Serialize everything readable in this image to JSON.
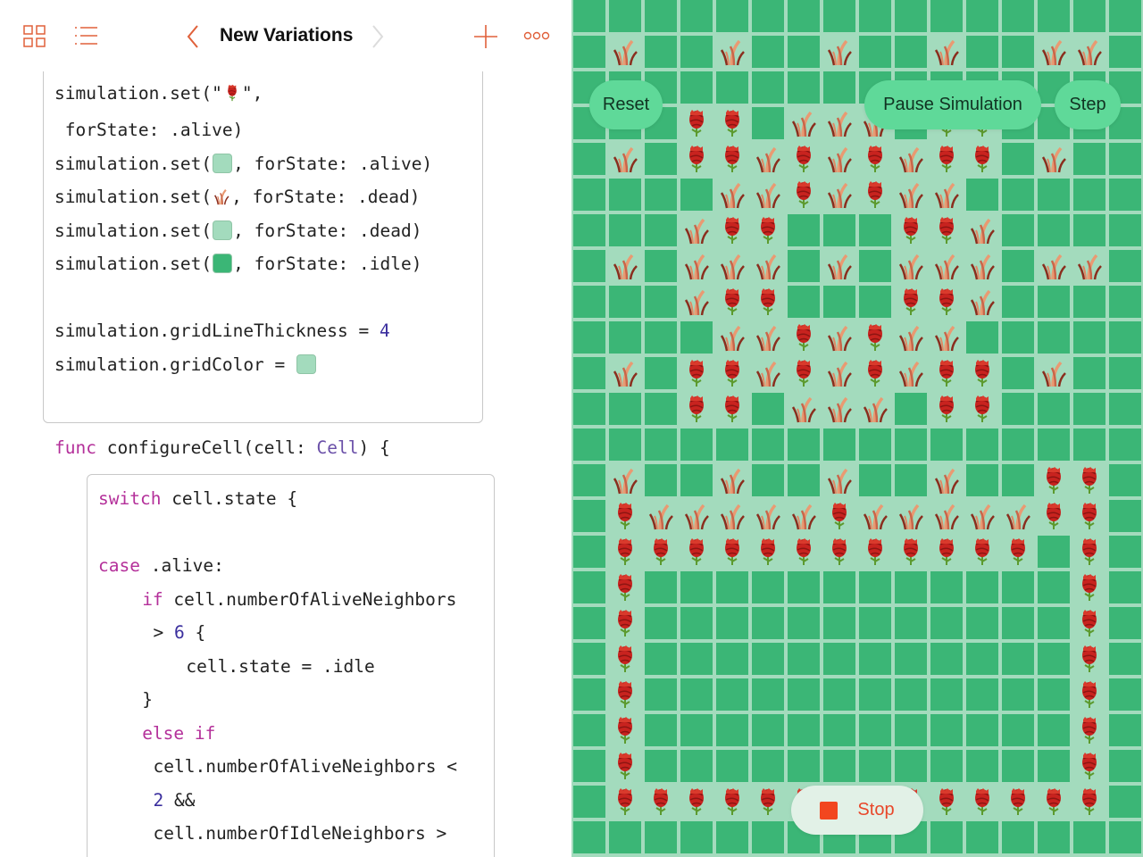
{
  "toolbar": {
    "title": "New Variations",
    "icons": [
      "grid-icon",
      "list-icon",
      "chevron-left-icon",
      "chevron-right-icon",
      "plus-icon",
      "more-icon"
    ],
    "accent": "#e0603a"
  },
  "code_box1": [
    [
      [
        "simulation.set(\"",
        ""
      ],
      [
        "@rose",
        ""
      ],
      [
        "\",",
        ""
      ]
    ],
    [
      [
        " forState: .alive)",
        ""
      ]
    ],
    [
      [
        "simulation.set(",
        ""
      ],
      [
        "@light",
        ""
      ],
      [
        ", forState: .alive)",
        ""
      ]
    ],
    [
      [
        "simulation.set(",
        ""
      ],
      [
        "@grass",
        ""
      ],
      [
        ", forState: .dead)",
        ""
      ]
    ],
    [
      [
        "simulation.set(",
        ""
      ],
      [
        "@light",
        ""
      ],
      [
        ", forState: .dead)",
        ""
      ]
    ],
    [
      [
        "simulation.set(",
        ""
      ],
      [
        "@dark",
        ""
      ],
      [
        ", forState: .idle)",
        ""
      ]
    ],
    [],
    [
      [
        "simulation.gridLineThickness = ",
        ""
      ],
      [
        "4",
        "num"
      ]
    ],
    [
      [
        "simulation.gridColor = ",
        ""
      ],
      [
        "@light",
        ""
      ]
    ]
  ],
  "func_line": [
    [
      "func",
      "kw"
    ],
    [
      " configureCell(cell: ",
      ""
    ],
    [
      "Cell",
      "ty"
    ],
    [
      ") {",
      ""
    ]
  ],
  "code_box2": [
    {
      "indent": 0,
      "tokens": [
        [
          "switch",
          "kw"
        ],
        [
          " cell.state {",
          ""
        ]
      ]
    },
    {
      "indent": 0,
      "tokens": []
    },
    {
      "indent": 0,
      "tokens": [
        [
          "case",
          "kw"
        ],
        [
          " .alive:",
          ""
        ]
      ]
    },
    {
      "indent": 4,
      "tokens": [
        [
          "if",
          "kw"
        ],
        [
          " cell.numberOfAliveNeighbors",
          ""
        ]
      ]
    },
    {
      "indent": 5,
      "tokens": [
        [
          "> ",
          ""
        ],
        [
          "6",
          "num"
        ],
        [
          " {",
          ""
        ]
      ]
    },
    {
      "indent": 8,
      "tokens": [
        [
          "cell.state = .idle",
          ""
        ]
      ]
    },
    {
      "indent": 4,
      "tokens": [
        [
          "}",
          ""
        ]
      ]
    },
    {
      "indent": 4,
      "tokens": [
        [
          "else if",
          "kw"
        ]
      ]
    },
    {
      "indent": 5,
      "tokens": [
        [
          "cell.numberOfAliveNeighbors <",
          ""
        ]
      ]
    },
    {
      "indent": 5,
      "tokens": [
        [
          "2",
          "num"
        ],
        [
          " &&",
          ""
        ]
      ]
    },
    {
      "indent": 5,
      "tokens": [
        [
          "cell.numberOfIdleNeighbors >",
          ""
        ]
      ]
    }
  ],
  "colors": {
    "idle": "#3bb676",
    "grid": "#a3dbbd",
    "alive_bg": "#a3dbbd",
    "dead_bg": "#a3dbbd"
  },
  "simulation": {
    "legend": {
      "R": "alive (rose)",
      "G": "dead (grass)",
      ".": "idle"
    },
    "rows": [
      "................",
      ".G..G..G..G..GG.",
      "................",
      "...RR.GGG.RR....",
      ".G.RRGRGRGRR.G..",
      "....GGRGRGG.....",
      "...GRR...RRG....",
      ".G.GGG.G.GGG.GG.",
      "...GRR...RRG....",
      "....GGRGRGG.....",
      ".G.RRGRGRGRR.G..",
      "...RR.GGG.RR....",
      "................",
      ".G..G..G..G..RR.",
      ".RGGGGGRGGGGGRR.",
      ".RRRRRRRRRRRR.R.",
      ".R............R.",
      ".R............R.",
      ".R............R.",
      ".R............R.",
      ".R............R.",
      ".R............R.",
      ".RRRRRRRRRRRRRR.",
      "................"
    ]
  },
  "controls": {
    "reset": "Reset",
    "pause": "Pause Simulation",
    "step": "Step",
    "stop": "Stop"
  }
}
